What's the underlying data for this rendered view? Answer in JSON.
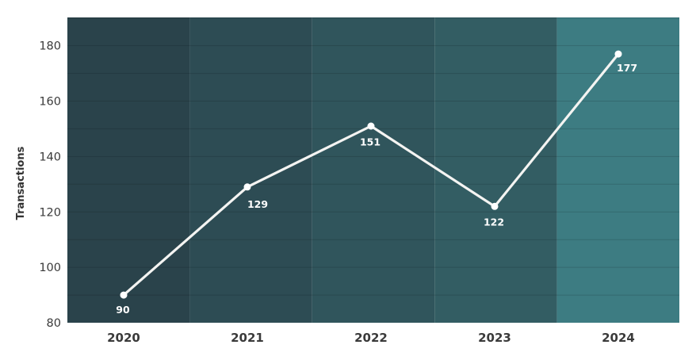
{
  "chart_data": {
    "type": "line",
    "title": "",
    "xlabel": "",
    "ylabel": "Transactions",
    "x": [
      "2020",
      "2021",
      "2022",
      "2023",
      "2024"
    ],
    "series": [
      {
        "name": "Transactions",
        "values": [
          90,
          129,
          151,
          122,
          177
        ]
      }
    ],
    "data_labels": [
      "90",
      "129",
      "151",
      "122",
      "177"
    ],
    "ylim": [
      80,
      190
    ],
    "yticks": [
      80,
      100,
      120,
      140,
      160,
      180
    ],
    "gridline_step": 10,
    "grid": true,
    "legend_position": "none",
    "colors": {
      "band_colors": [
        "#2a434b",
        "#2d4c54",
        "#30555c",
        "#335d63",
        "#3d7c82"
      ],
      "line": "#f4f4f2",
      "marker": "#ffffff",
      "data_label": "#ffffff",
      "gridline": "rgba(0,0,0,0.14)",
      "tick_label": "#3a3a3a",
      "axis_label": "#333333",
      "background": "#ffffff"
    }
  }
}
